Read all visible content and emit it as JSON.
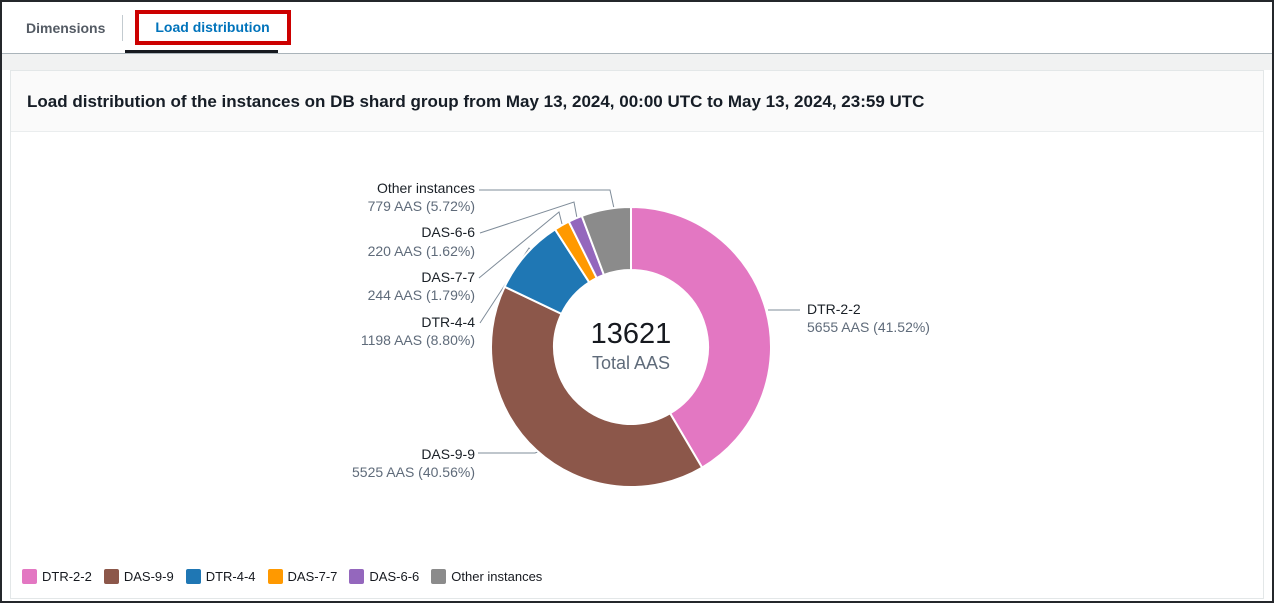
{
  "tabs": {
    "dimensions": {
      "label": "Dimensions",
      "active": false
    },
    "load_distribution": {
      "label": "Load distribution",
      "active": true
    }
  },
  "panel": {
    "title": "Load distribution of the instances on DB shard group from May 13, 2024, 00:00 UTC to May 13, 2024, 23:59 UTC"
  },
  "theme": {
    "active_tab_color": "#0073bb",
    "inactive_tab_color": "#545b64",
    "active_tab_underline": "#16191f",
    "annotation_box_color": "#cc0000"
  },
  "chart_data": {
    "type": "pie",
    "subtype": "donut",
    "title": "Load distribution of the instances on DB shard group from May 13, 2024, 00:00 UTC to May 13, 2024, 23:59 UTC",
    "unit": "AAS",
    "total": 13621,
    "center_total": "13621",
    "center_label": "Total AAS",
    "slice_order": "clockwise from 12 o'clock",
    "legend_position": "bottom-left",
    "slices": [
      {
        "name": "DTR-2-2",
        "value": 5655,
        "pct": 41.52,
        "label": "5655 AAS (41.52%)",
        "color": "#e377c2"
      },
      {
        "name": "DAS-9-9",
        "value": 5525,
        "pct": 40.56,
        "label": "5525 AAS (40.56%)",
        "color": "#8c574a"
      },
      {
        "name": "DTR-4-4",
        "value": 1198,
        "pct": 8.8,
        "label": "1198 AAS (8.80%)",
        "color": "#1f77b4"
      },
      {
        "name": "DAS-7-7",
        "value": 244,
        "pct": 1.79,
        "label": "244 AAS (1.79%)",
        "color": "#ff9900"
      },
      {
        "name": "DAS-6-6",
        "value": 220,
        "pct": 1.62,
        "label": "220 AAS (1.62%)",
        "color": "#9467bd"
      },
      {
        "name": "Other instances",
        "value": 779,
        "pct": 5.72,
        "label": "779 AAS (5.72%)",
        "color": "#8b8b8b"
      }
    ]
  }
}
